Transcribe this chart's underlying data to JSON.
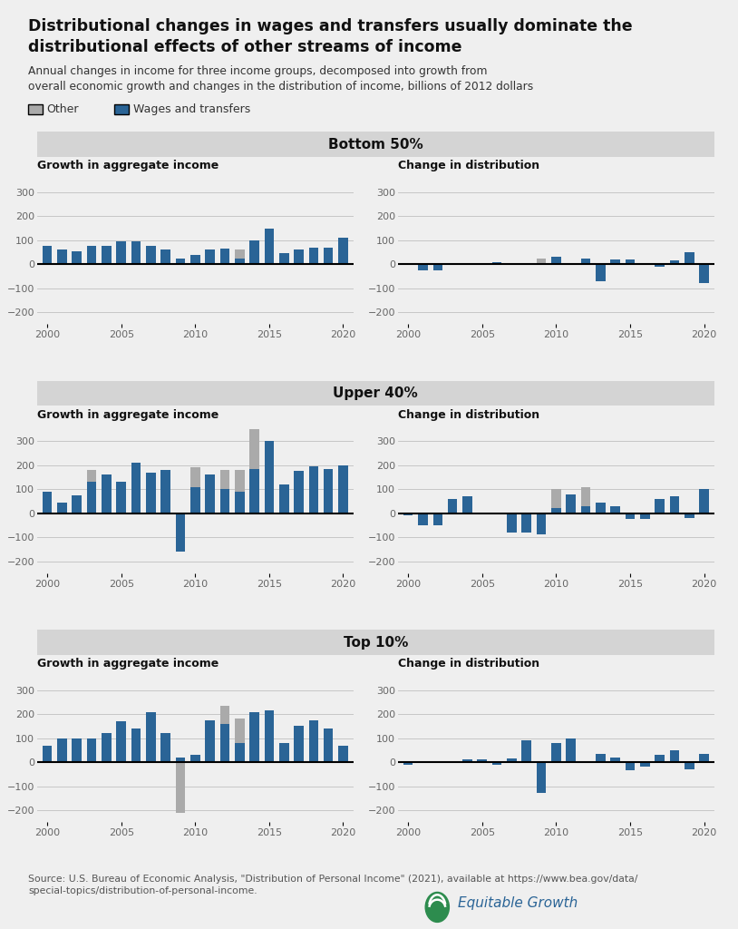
{
  "title": "Distributional changes in wages and transfers usually dominate the\ndistributional effects of other streams of income",
  "subtitle": "Annual changes in income for three income groups, decomposed into growth from\noverall economic growth and changes in the distribution of income, billions of 2012 dollars",
  "legend_other": "Other",
  "legend_wages": "Wages and transfers",
  "color_other": "#aaaaaa",
  "color_wages": "#2a6496",
  "bg_color": "#efefef",
  "header_bg": "#d4d4d4",
  "groups": [
    "Bottom 50%",
    "Upper 40%",
    "Top 10%"
  ],
  "years": [
    2000,
    2001,
    2002,
    2003,
    2004,
    2005,
    2006,
    2007,
    2008,
    2009,
    2010,
    2011,
    2012,
    2013,
    2014,
    2015,
    2016,
    2017,
    2018,
    2019,
    2020
  ],
  "bottom50_agg_wages": [
    75,
    60,
    55,
    75,
    75,
    95,
    95,
    75,
    60,
    25,
    40,
    60,
    65,
    25,
    100,
    150,
    45,
    60,
    70,
    70,
    110
  ],
  "bottom50_agg_other": [
    0,
    0,
    0,
    0,
    0,
    0,
    0,
    0,
    0,
    0,
    0,
    0,
    0,
    35,
    0,
    0,
    0,
    -25,
    0,
    0,
    0
  ],
  "bottom50_dist_wages": [
    0,
    -25,
    -25,
    0,
    0,
    0,
    10,
    0,
    0,
    0,
    30,
    0,
    25,
    -70,
    20,
    20,
    0,
    -10,
    15,
    50,
    -80
  ],
  "bottom50_dist_other": [
    0,
    0,
    0,
    0,
    0,
    0,
    0,
    0,
    0,
    25,
    0,
    0,
    0,
    20,
    0,
    0,
    0,
    0,
    0,
    0,
    0
  ],
  "upper40_agg_wages": [
    90,
    45,
    75,
    130,
    160,
    130,
    210,
    170,
    180,
    -160,
    110,
    160,
    100,
    90,
    185,
    300,
    120,
    175,
    195,
    185,
    200
  ],
  "upper40_agg_other": [
    0,
    -20,
    0,
    50,
    0,
    0,
    0,
    0,
    0,
    0,
    80,
    0,
    80,
    90,
    170,
    0,
    0,
    0,
    0,
    0,
    0
  ],
  "upper40_dist_wages": [
    -10,
    -50,
    -50,
    60,
    70,
    0,
    0,
    -80,
    -80,
    -90,
    20,
    80,
    30,
    45,
    30,
    -25,
    -25,
    60,
    70,
    -20,
    100
  ],
  "upper40_dist_other": [
    0,
    0,
    0,
    0,
    0,
    0,
    0,
    0,
    0,
    0,
    80,
    0,
    80,
    0,
    0,
    0,
    0,
    0,
    0,
    0,
    0
  ],
  "top10_agg_wages": [
    70,
    100,
    100,
    100,
    120,
    170,
    140,
    210,
    120,
    20,
    30,
    175,
    160,
    80,
    210,
    215,
    80,
    150,
    175,
    140,
    70
  ],
  "top10_agg_other": [
    0,
    0,
    -25,
    0,
    0,
    0,
    0,
    0,
    0,
    -230,
    0,
    0,
    75,
    100,
    0,
    0,
    0,
    0,
    0,
    0,
    0
  ],
  "top10_dist_wages": [
    -10,
    -5,
    0,
    5,
    10,
    10,
    -10,
    15,
    90,
    -130,
    80,
    100,
    0,
    35,
    20,
    -35,
    -20,
    30,
    50,
    -30,
    35
  ],
  "top10_dist_other": [
    0,
    0,
    0,
    0,
    0,
    0,
    0,
    0,
    0,
    0,
    0,
    0,
    0,
    0,
    0,
    0,
    0,
    0,
    0,
    0,
    0
  ],
  "source": "Source: U.S. Bureau of Economic Analysis, \"Distribution of Personal Income\" (2021), available at https://www.bea.gov/data/\nspecial-topics/distribution-of-personal-income.",
  "ylim": [
    -250,
    350
  ],
  "yticks": [
    -200,
    -100,
    0,
    100,
    200,
    300
  ]
}
